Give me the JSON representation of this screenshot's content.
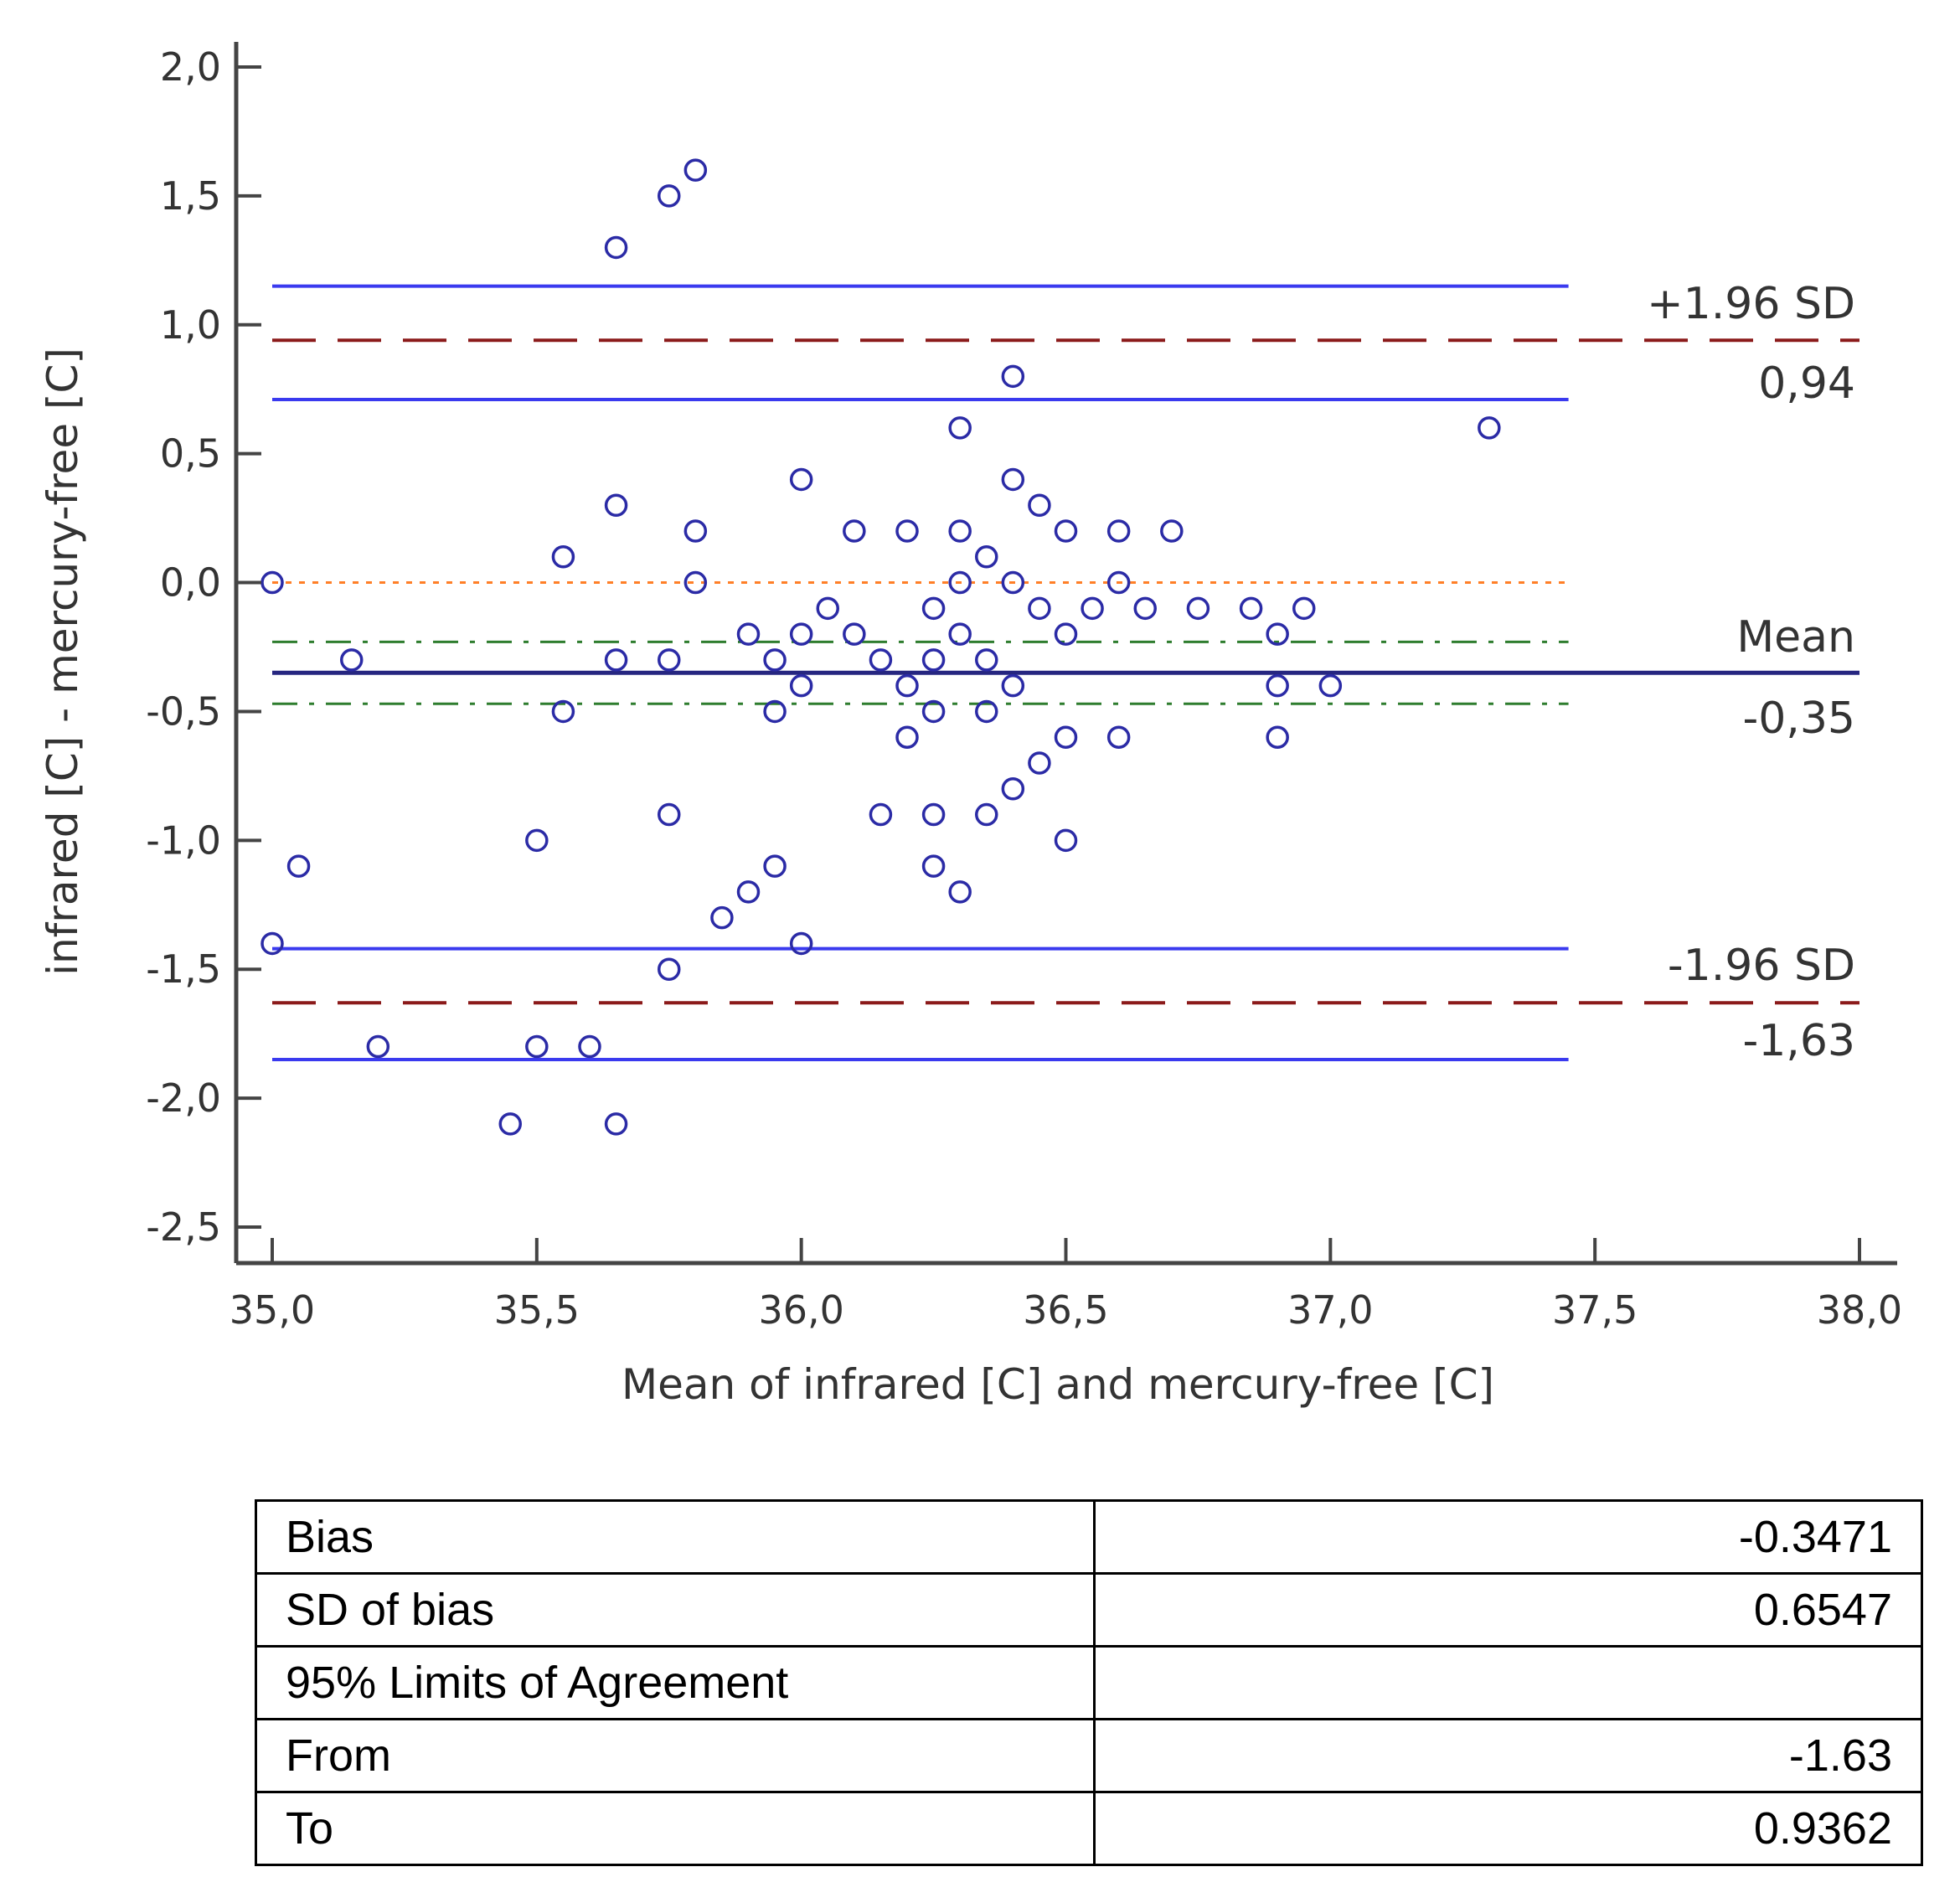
{
  "chart_data": {
    "type": "scatter",
    "title": "",
    "xlabel": "Mean of infrared [C]  and mercury-free [C]",
    "ylabel": "infrared [C]  - mercury-free [C]",
    "xlim": [
      35.0,
      38.0
    ],
    "ylim": [
      -2.5,
      2.0
    ],
    "x_ticks": [
      "35,0",
      "35,5",
      "36,0",
      "36,5",
      "37,0",
      "37,5",
      "38,0"
    ],
    "x_tick_values": [
      35.0,
      35.5,
      36.0,
      36.5,
      37.0,
      37.5,
      38.0
    ],
    "y_ticks": [
      "2,0",
      "1,5",
      "1,0",
      "0,5",
      "0,0",
      "-0,5",
      "-1,0",
      "-1,5",
      "-2,0",
      "-2,5"
    ],
    "y_tick_values": [
      2.0,
      1.5,
      1.0,
      0.5,
      0.0,
      -0.5,
      -1.0,
      -1.5,
      -2.0,
      -2.5
    ],
    "grid": false,
    "points": [
      [
        35.0,
        0.0
      ],
      [
        35.0,
        -1.4
      ],
      [
        35.05,
        -1.1
      ],
      [
        35.15,
        -0.3
      ],
      [
        35.2,
        -1.8
      ],
      [
        35.45,
        -2.1
      ],
      [
        35.5,
        -1.0
      ],
      [
        35.5,
        -1.8
      ],
      [
        35.55,
        0.1
      ],
      [
        35.55,
        -0.5
      ],
      [
        35.6,
        -1.8
      ],
      [
        35.65,
        1.3
      ],
      [
        35.65,
        0.3
      ],
      [
        35.65,
        -0.3
      ],
      [
        35.65,
        -2.1
      ],
      [
        35.75,
        1.5
      ],
      [
        35.75,
        -0.3
      ],
      [
        35.75,
        -0.9
      ],
      [
        35.75,
        -1.5
      ],
      [
        35.8,
        1.6
      ],
      [
        35.8,
        0.2
      ],
      [
        35.8,
        0.0
      ],
      [
        35.85,
        -1.3
      ],
      [
        35.9,
        -0.2
      ],
      [
        35.9,
        -1.2
      ],
      [
        35.95,
        -0.3
      ],
      [
        35.95,
        -0.5
      ],
      [
        35.95,
        -1.1
      ],
      [
        36.0,
        0.4
      ],
      [
        36.0,
        -0.2
      ],
      [
        36.0,
        -0.4
      ],
      [
        36.0,
        -1.4
      ],
      [
        36.05,
        -0.1
      ],
      [
        36.1,
        0.2
      ],
      [
        36.1,
        -0.2
      ],
      [
        36.15,
        -0.3
      ],
      [
        36.15,
        -0.9
      ],
      [
        36.2,
        0.2
      ],
      [
        36.2,
        -0.4
      ],
      [
        36.2,
        -0.6
      ],
      [
        36.25,
        -0.1
      ],
      [
        36.25,
        -0.3
      ],
      [
        36.25,
        -0.5
      ],
      [
        36.25,
        -0.9
      ],
      [
        36.25,
        -1.1
      ],
      [
        36.3,
        0.6
      ],
      [
        36.3,
        0.2
      ],
      [
        36.3,
        0.0
      ],
      [
        36.3,
        -0.2
      ],
      [
        36.3,
        -1.2
      ],
      [
        36.35,
        0.1
      ],
      [
        36.35,
        -0.3
      ],
      [
        36.35,
        -0.5
      ],
      [
        36.35,
        -0.9
      ],
      [
        36.4,
        0.8
      ],
      [
        36.4,
        0.4
      ],
      [
        36.4,
        0.0
      ],
      [
        36.4,
        -0.4
      ],
      [
        36.4,
        -0.8
      ],
      [
        36.45,
        0.3
      ],
      [
        36.45,
        -0.1
      ],
      [
        36.45,
        -0.7
      ],
      [
        36.5,
        0.2
      ],
      [
        36.5,
        -0.2
      ],
      [
        36.5,
        -0.6
      ],
      [
        36.5,
        -1.0
      ],
      [
        36.55,
        -0.1
      ],
      [
        36.6,
        0.2
      ],
      [
        36.6,
        0.0
      ],
      [
        36.6,
        -0.6
      ],
      [
        36.65,
        -0.1
      ],
      [
        36.7,
        0.2
      ],
      [
        36.75,
        -0.1
      ],
      [
        36.85,
        -0.1
      ],
      [
        36.9,
        -0.2
      ],
      [
        36.9,
        -0.4
      ],
      [
        36.9,
        -0.6
      ],
      [
        36.95,
        -0.1
      ],
      [
        37.0,
        -0.4
      ],
      [
        37.3,
        0.6
      ]
    ],
    "reference_lines": {
      "mean": -0.35,
      "mean_ci": [
        -0.23,
        -0.47
      ],
      "upper_loa": 0.94,
      "upper_loa_ci": [
        1.15,
        0.71
      ],
      "lower_loa": -1.63,
      "lower_loa_ci": [
        -1.42,
        -1.85
      ],
      "zero": 0.0
    },
    "annotations": {
      "upper_label": "+1.96 SD",
      "upper_value": "0,94",
      "mean_label": "Mean",
      "mean_value": "-0,35",
      "lower_label": "-1.96 SD",
      "lower_value": "-1,63"
    },
    "colors": {
      "points": "#2b2ba6",
      "loa_ci": "#3a3aef",
      "loa": "#8b1a1a",
      "mean": "#262680",
      "mean_ci": "#2e7d2e",
      "zero": "#ff7f27",
      "axis": "#444444"
    }
  },
  "table": {
    "rows": [
      {
        "label": "Bias",
        "value": "-0.3471"
      },
      {
        "label": "SD of bias",
        "value": "0.6547"
      },
      {
        "label": "95% Limits of Agreement",
        "value": ""
      },
      {
        "label": "From",
        "value": "-1.63"
      },
      {
        "label": "To",
        "value": "0.9362"
      }
    ]
  }
}
